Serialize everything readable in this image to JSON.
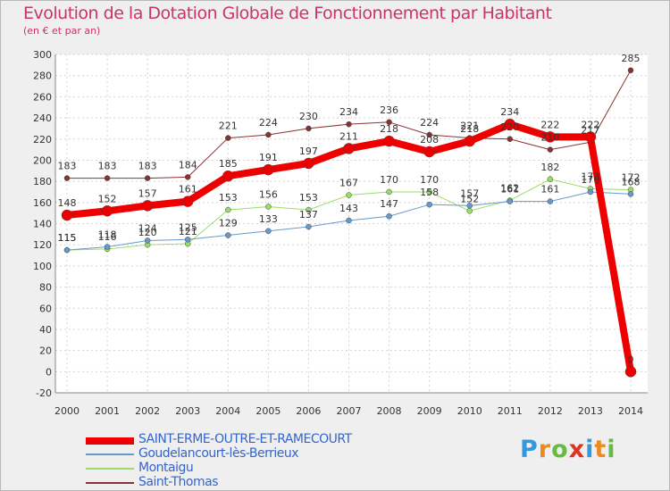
{
  "title": "Evolution de la Dotation Globale de Fonctionnement par Habitant",
  "subtitle": "(en € et par an)",
  "logo": "Proxiti",
  "chart_data": {
    "type": "line",
    "x": [
      "2000",
      "2001",
      "2002",
      "2003",
      "2004",
      "2005",
      "2006",
      "2007",
      "2008",
      "2009",
      "2010",
      "2011",
      "2012",
      "2013",
      "2014"
    ],
    "ylim": [
      -20,
      300
    ],
    "yticks": [
      -20,
      0,
      20,
      40,
      60,
      80,
      100,
      120,
      140,
      160,
      180,
      200,
      220,
      240,
      260,
      280,
      300
    ],
    "grid": true,
    "legend_position": "bottom-left",
    "series": [
      {
        "name": "SAINT-ERME-OUTRE-ET-RAMECOURT",
        "color": "#ee0000",
        "width": 8,
        "values": [
          148,
          152,
          157,
          161,
          185,
          191,
          197,
          211,
          218,
          208,
          218,
          234,
          222,
          222,
          0
        ]
      },
      {
        "name": "Goudelancourt-lès-Berrieux",
        "color": "#6699cc",
        "width": 1,
        "values": [
          115,
          118,
          124,
          125,
          129,
          133,
          137,
          143,
          147,
          158,
          157,
          161,
          161,
          170,
          168
        ]
      },
      {
        "name": "Montaigu",
        "color": "#99dd66",
        "width": 1,
        "values": [
          115,
          116,
          120,
          121,
          153,
          156,
          153,
          167,
          170,
          170,
          152,
          162,
          182,
          173,
          172
        ]
      },
      {
        "name": "Saint-Thomas",
        "color": "#883333",
        "width": 1,
        "values": [
          183,
          183,
          183,
          184,
          221,
          224,
          230,
          234,
          236,
          224,
          221,
          220,
          210,
          217,
          285
        ]
      }
    ],
    "data_labels": [
      [
        "148",
        "152",
        "157",
        "161",
        "185",
        "191",
        "197",
        "211",
        "218",
        "208",
        "218",
        "234",
        "222",
        "222",
        "0"
      ],
      [
        "115",
        "118",
        "124",
        "125",
        "129",
        "133",
        "137",
        "143",
        "147",
        "158",
        "157",
        "161",
        "161",
        "170",
        "168"
      ],
      [
        "115",
        "116",
        "120",
        "121",
        "153",
        "156",
        "153",
        "167",
        "170",
        "170",
        "152",
        "162",
        "182",
        "173",
        "172"
      ],
      [
        "183",
        "183",
        "183",
        "184",
        "221",
        "224",
        "230",
        "234",
        "236",
        "224",
        "221",
        "220",
        "210",
        "217",
        "285"
      ]
    ]
  }
}
